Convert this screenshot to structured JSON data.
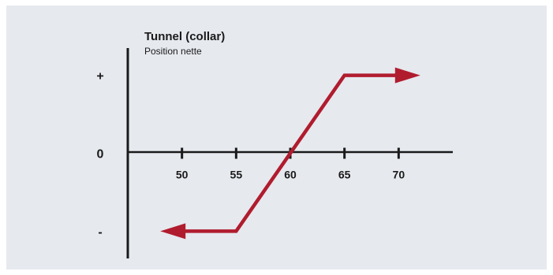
{
  "chart_data": {
    "type": "line",
    "title": "Tunnel (collar)",
    "subtitle": "Position nette",
    "x_ticks": [
      {
        "value": 50,
        "label": "50"
      },
      {
        "value": 55,
        "label": "55"
      },
      {
        "value": 60,
        "label": "60"
      },
      {
        "value": 65,
        "label": "65"
      },
      {
        "value": 70,
        "label": "70"
      }
    ],
    "y_labels": [
      {
        "value": 1,
        "label": "+"
      },
      {
        "value": 0,
        "label": "0"
      },
      {
        "value": -1,
        "label": "-"
      }
    ],
    "xlim": [
      45,
      75
    ],
    "ylim": [
      -1.35,
      1.35
    ],
    "payoff": {
      "x": [
        48,
        55,
        65,
        72
      ],
      "y": [
        -1,
        -1,
        1,
        1
      ],
      "arrows": "both"
    },
    "colors": {
      "payoff_line": "#b01c2e",
      "axis": "#1a1a1a",
      "background": "#e6e9ee"
    }
  }
}
